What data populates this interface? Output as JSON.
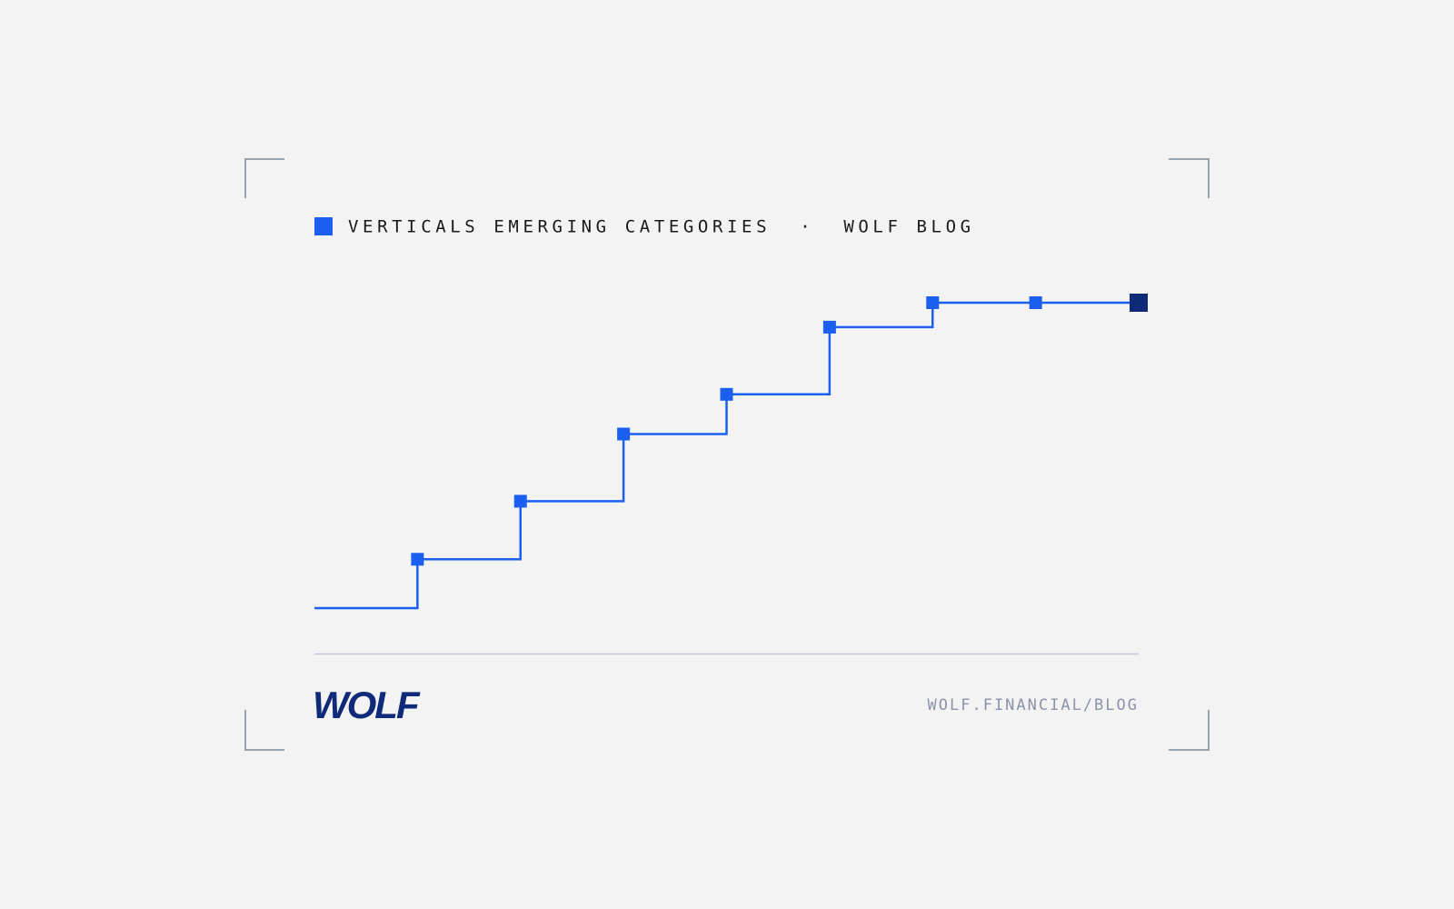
{
  "chart_data": {
    "type": "step",
    "title": "VERTICALS EMERGING CATEGORIES  ·  WOLF BLOG",
    "categories": [
      null,
      null,
      null,
      null,
      null,
      null,
      null,
      null,
      null
    ],
    "values": [
      0,
      16,
      35,
      57,
      70,
      92,
      100,
      100,
      100
    ],
    "ylim": [
      0,
      100
    ],
    "color": "#1a5ff0",
    "highlight_color": "#0f2a78"
  },
  "footer": {
    "brand": "WOLF",
    "url": "WOLF.FINANCIAL/BLOG"
  }
}
